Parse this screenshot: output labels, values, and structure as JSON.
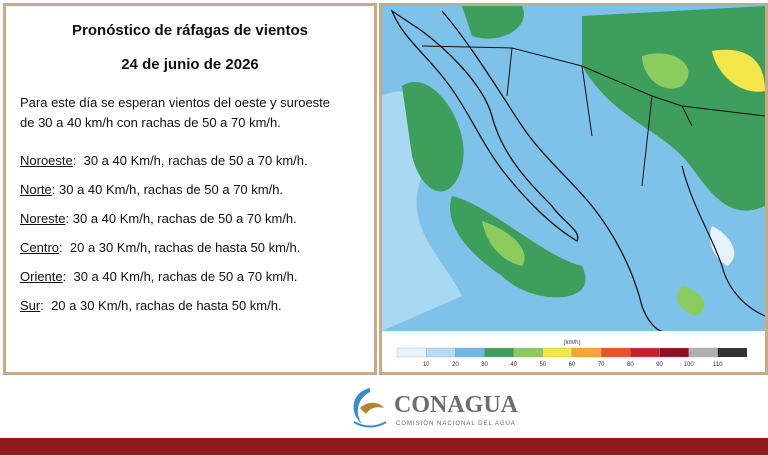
{
  "panel": {
    "title": "Pronóstico de ráfagas de vientos",
    "date": "24 de junio de 2026",
    "summary": [
      "Para este día se esperan vientos del oeste y suroeste",
      "de 30 a 40 km/h con rachas de 50 a 70 km/h."
    ],
    "regions": [
      {
        "name": "Noroeste",
        "detail": ":  30 a 40 Km/h, rachas de 50 a 70 km/h."
      },
      {
        "name": "Norte",
        "detail": ": 30 a 40 Km/h, rachas de 50 a 70 km/h."
      },
      {
        "name": "Noreste",
        "detail": ": 30 a 40 Km/h, rachas de 50 a 70 km/h."
      },
      {
        "name": "Centro",
        "detail": ":  20 a 30 Km/h, rachas de hasta 50 km/h."
      },
      {
        "name": "Oriente",
        "detail": ":  30 a 40 Km/h, rachas de 50 a 70 km/h."
      },
      {
        "name": "Sur",
        "detail": ":  20 a 30 Km/h, rachas de hasta 50 km/h."
      }
    ]
  },
  "legend": {
    "unit": "(km/h)",
    "bins": [
      {
        "label": 10,
        "color": "#e6f3fb"
      },
      {
        "label": 20,
        "color": "#b5dcf3"
      },
      {
        "label": 30,
        "color": "#6fb8e4"
      },
      {
        "label": 40,
        "color": "#3e9e5c"
      },
      {
        "label": 50,
        "color": "#8ccb5e"
      },
      {
        "label": 60,
        "color": "#f2e64a"
      },
      {
        "label": 70,
        "color": "#f3a43a"
      },
      {
        "label": 80,
        "color": "#e4532a"
      },
      {
        "label": 90,
        "color": "#c8202a"
      },
      {
        "label": 100,
        "color": "#8c1020"
      },
      {
        "label": 110,
        "color": "#b0b0b0"
      }
    ],
    "last_color": "#333333"
  },
  "footer": {
    "brand": "CONAGUA",
    "subtitle": "COMISIÓN NACIONAL DEL AGUA"
  }
}
